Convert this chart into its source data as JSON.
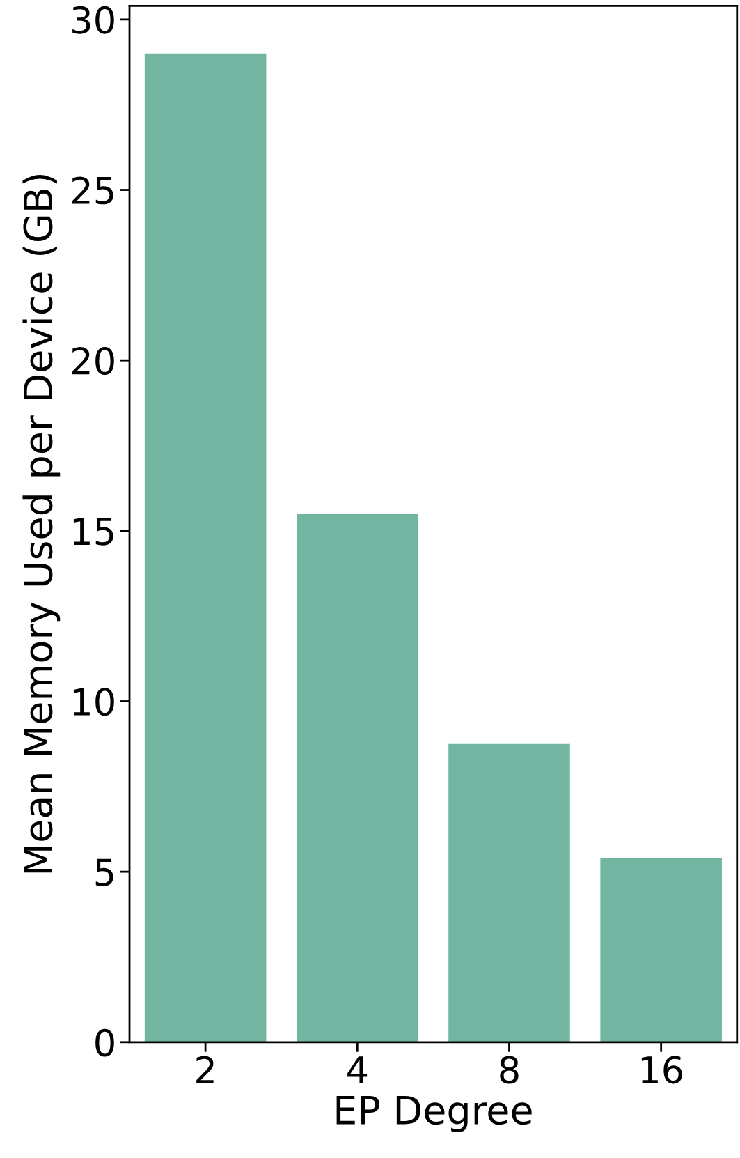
{
  "chart_data": {
    "type": "bar",
    "xlabel": "EP Degree",
    "ylabel": "Mean Memory Used per Device (GB)",
    "categories": [
      "2",
      "4",
      "8",
      "16"
    ],
    "values": [
      29.0,
      15.5,
      8.75,
      5.4
    ],
    "color": "#72b6a1",
    "ylim": [
      0,
      30.4
    ],
    "yticks": [
      0,
      5,
      10,
      15,
      20,
      25,
      30
    ],
    "grid": false,
    "legend": false
  }
}
